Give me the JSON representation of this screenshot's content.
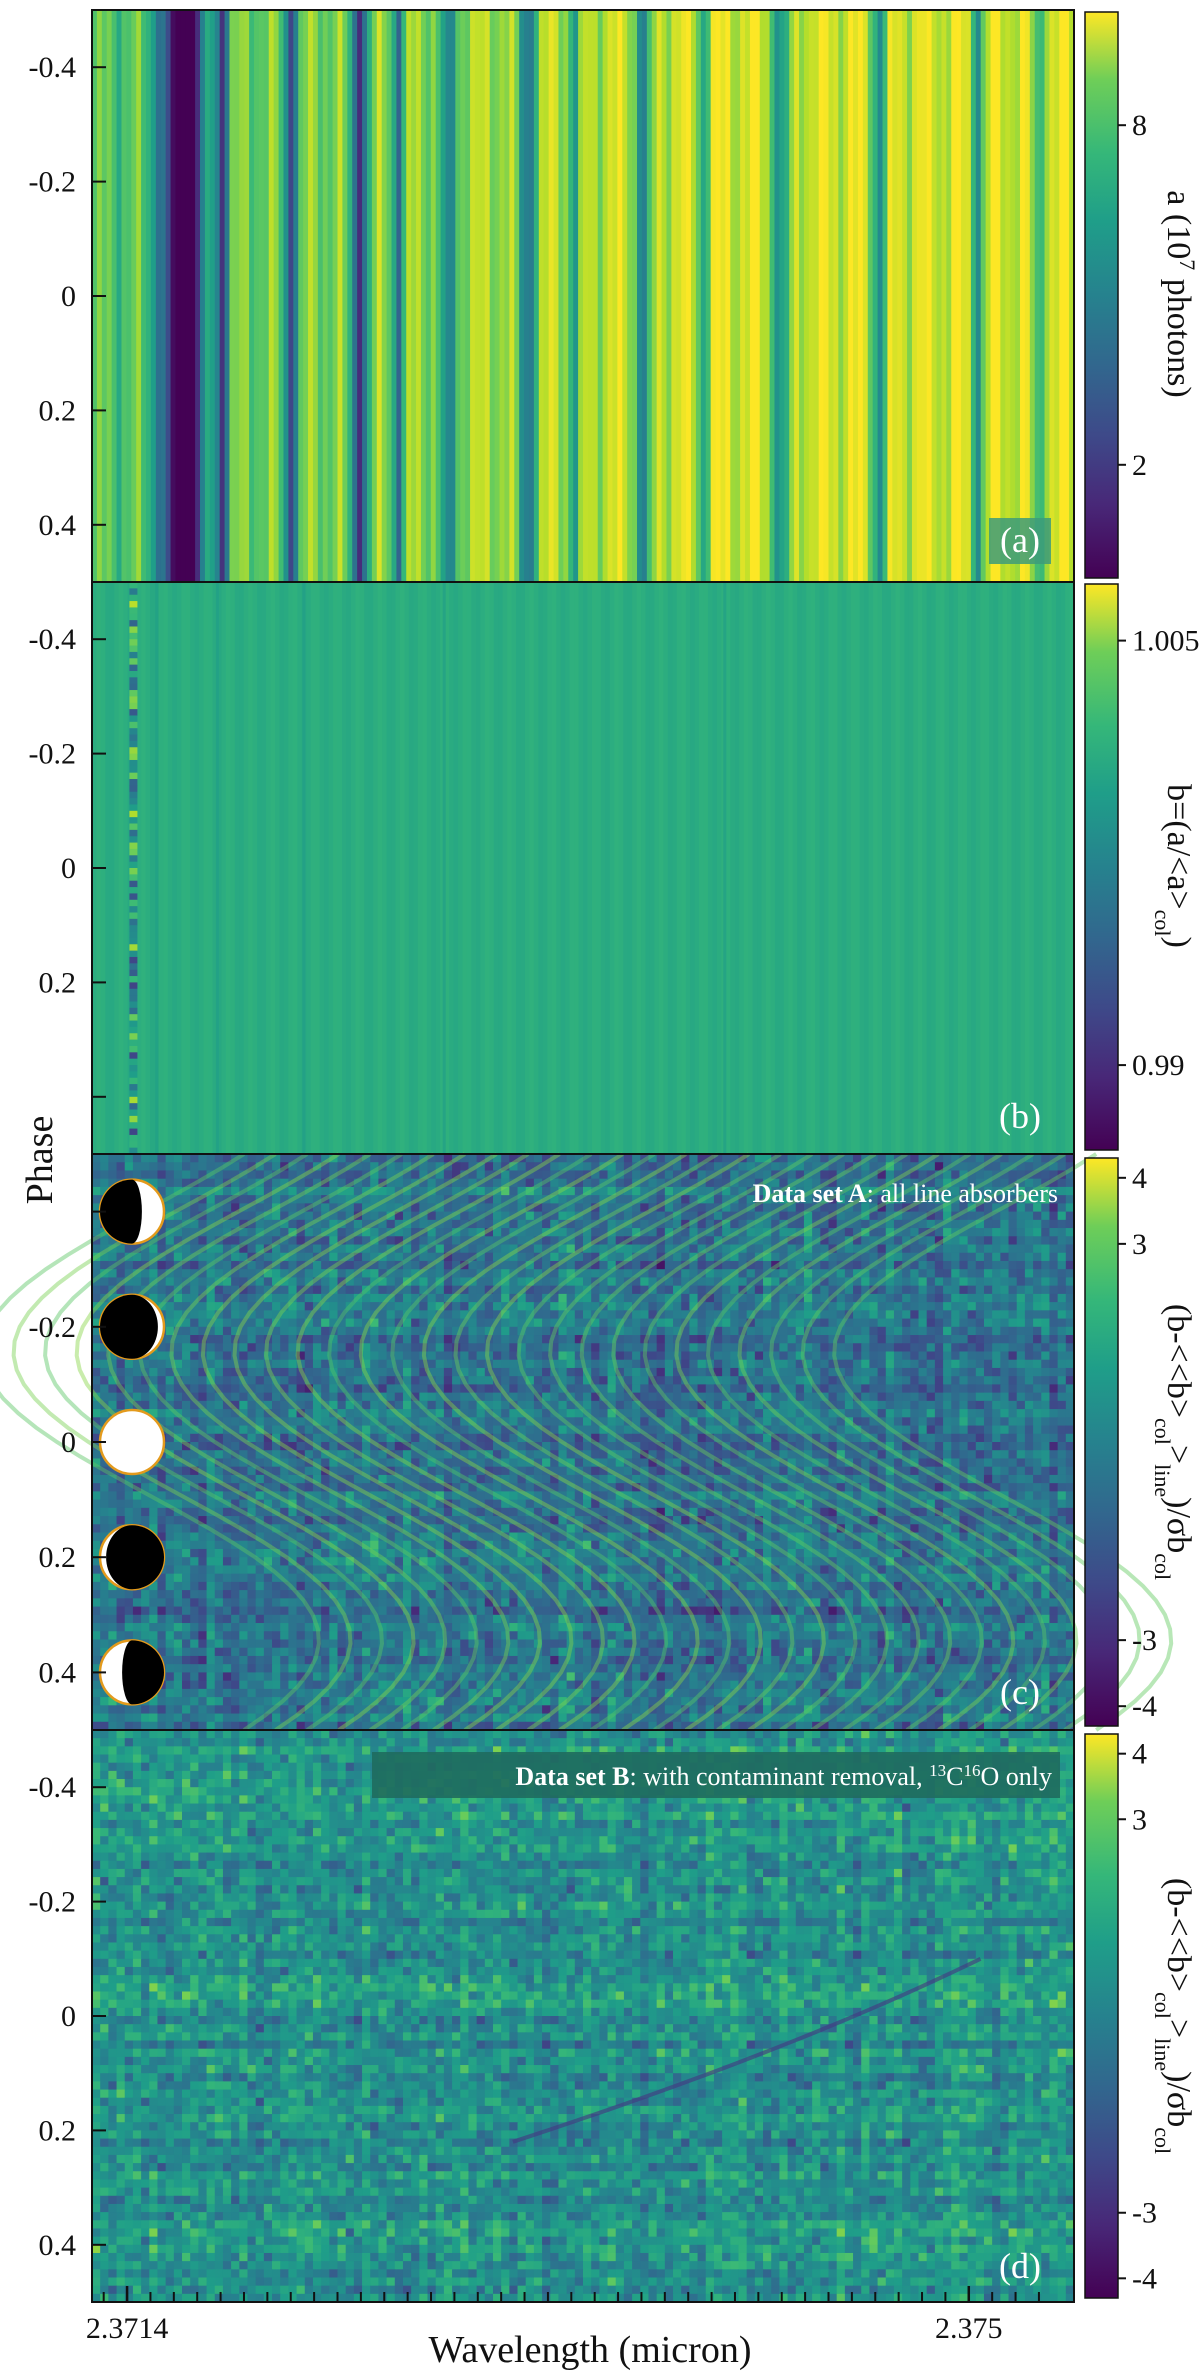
{
  "figure": {
    "ylabel": "Phase",
    "xlabel": "Wavelength (micron)"
  },
  "chart_data": [
    {
      "type": "heatmap",
      "panel": "a",
      "tag": "(a)",
      "ylabel": "Phase",
      "xlabel": "Wavelength (micron)",
      "yticks": [
        "-0.4",
        "-0.2",
        "0",
        "0.2",
        "0.4"
      ],
      "ytick_values": [
        -0.4,
        -0.2,
        0,
        0.2,
        0.4
      ],
      "ylim": [
        -0.5,
        0.5
      ],
      "xlim": [
        2.37125,
        2.37545
      ],
      "colorbar": {
        "label": "a (10⁷ photons)",
        "ticks": [
          "8",
          "2"
        ],
        "tick_values": [
          8,
          2
        ],
        "range": [
          0,
          10
        ]
      },
      "colormap": "viridis",
      "description": "vertical telluric absorption bands constant in phase"
    },
    {
      "type": "heatmap",
      "panel": "b",
      "tag": "(b)",
      "yticks": [
        "-0.4",
        "-0.2",
        "0",
        "0.2"
      ],
      "ytick_values": [
        -0.4,
        -0.2,
        0,
        0.2
      ],
      "ylim": [
        -0.5,
        0.5
      ],
      "colorbar": {
        "label": "b=(a/<a>col)",
        "ticks": [
          "1.005",
          "0.99"
        ],
        "tick_values": [
          1.005,
          0.99
        ],
        "range": [
          0.987,
          1.007
        ]
      },
      "colormap": "viridis"
    },
    {
      "type": "heatmap",
      "panel": "c",
      "tag": "(c)",
      "annotation": {
        "bold": "Data set A",
        "rest": ": all line absorbers"
      },
      "yticks": [
        "-0.2",
        "0",
        "0.2",
        "0.4"
      ],
      "ytick_values": [
        -0.2,
        0,
        0.2,
        0.4
      ],
      "ylim": [
        -0.5,
        0.5
      ],
      "colorbar": {
        "label": "(b-<<b>col>line)/σbcol",
        "ticks": [
          "4",
          "3",
          "-3",
          "-4"
        ],
        "tick_values": [
          4,
          3,
          -3,
          -4
        ],
        "range": [
          -4.3,
          4.3
        ]
      },
      "colormap": "viridis",
      "moon_phases": [
        -0.4,
        -0.2,
        0,
        0.2,
        0.4
      ]
    },
    {
      "type": "heatmap",
      "panel": "d",
      "tag": "(d)",
      "annotation": {
        "bold": "Data set B",
        "rest": ": with contaminant removal, ¹³C¹⁶O only"
      },
      "yticks": [
        "-0.4",
        "-0.2",
        "0",
        "0.2",
        "0.4"
      ],
      "ytick_values": [
        -0.4,
        -0.2,
        0,
        0.2,
        0.4
      ],
      "ylim": [
        -0.5,
        0.5
      ],
      "xticks": [
        "2.3714",
        "2.375"
      ],
      "xtick_values": [
        2.3714,
        2.375
      ],
      "colorbar": {
        "label": "(b-<<b>col>line)/σbcol",
        "ticks": [
          "4",
          "3",
          "-3",
          "-4"
        ],
        "tick_values": [
          4,
          3,
          -3,
          -4
        ],
        "range": [
          -4.3,
          4.3
        ]
      },
      "colormap": "viridis"
    }
  ],
  "labels": {
    "panel_a_tag": "(a)",
    "panel_b_tag": "(b)",
    "panel_c_tag": "(c)",
    "panel_d_tag": "(d)",
    "set_a_bold": "Data set A",
    "set_a_rest": ": all line absorbers",
    "set_b_bold": "Data set B",
    "set_b_rest": ": with contaminant removal, ",
    "set_b_iso1": "13",
    "set_b_iso2": "C",
    "set_b_iso3": "16",
    "set_b_iso4": "O only",
    "cb_a_1": "a (10",
    "cb_a_sup": "7",
    "cb_a_2": " photons)",
    "cb_b_1": "b=(a/<a>",
    "cb_b_sub": "col",
    "cb_b_2": ")",
    "cb_c_1": "(b-<<b>",
    "cb_c_sub1": "col",
    "cb_c_2": ">",
    "cb_c_sub2": "line",
    "cb_c_3": ")/σb",
    "cb_c_sub3": "col"
  },
  "colors": {
    "viridis_low": "#440154",
    "viridis_mid": "#21918c",
    "viridis_high": "#fde725",
    "moon_rim": "#e39a1c",
    "tag_box": "#3d9b7a"
  }
}
